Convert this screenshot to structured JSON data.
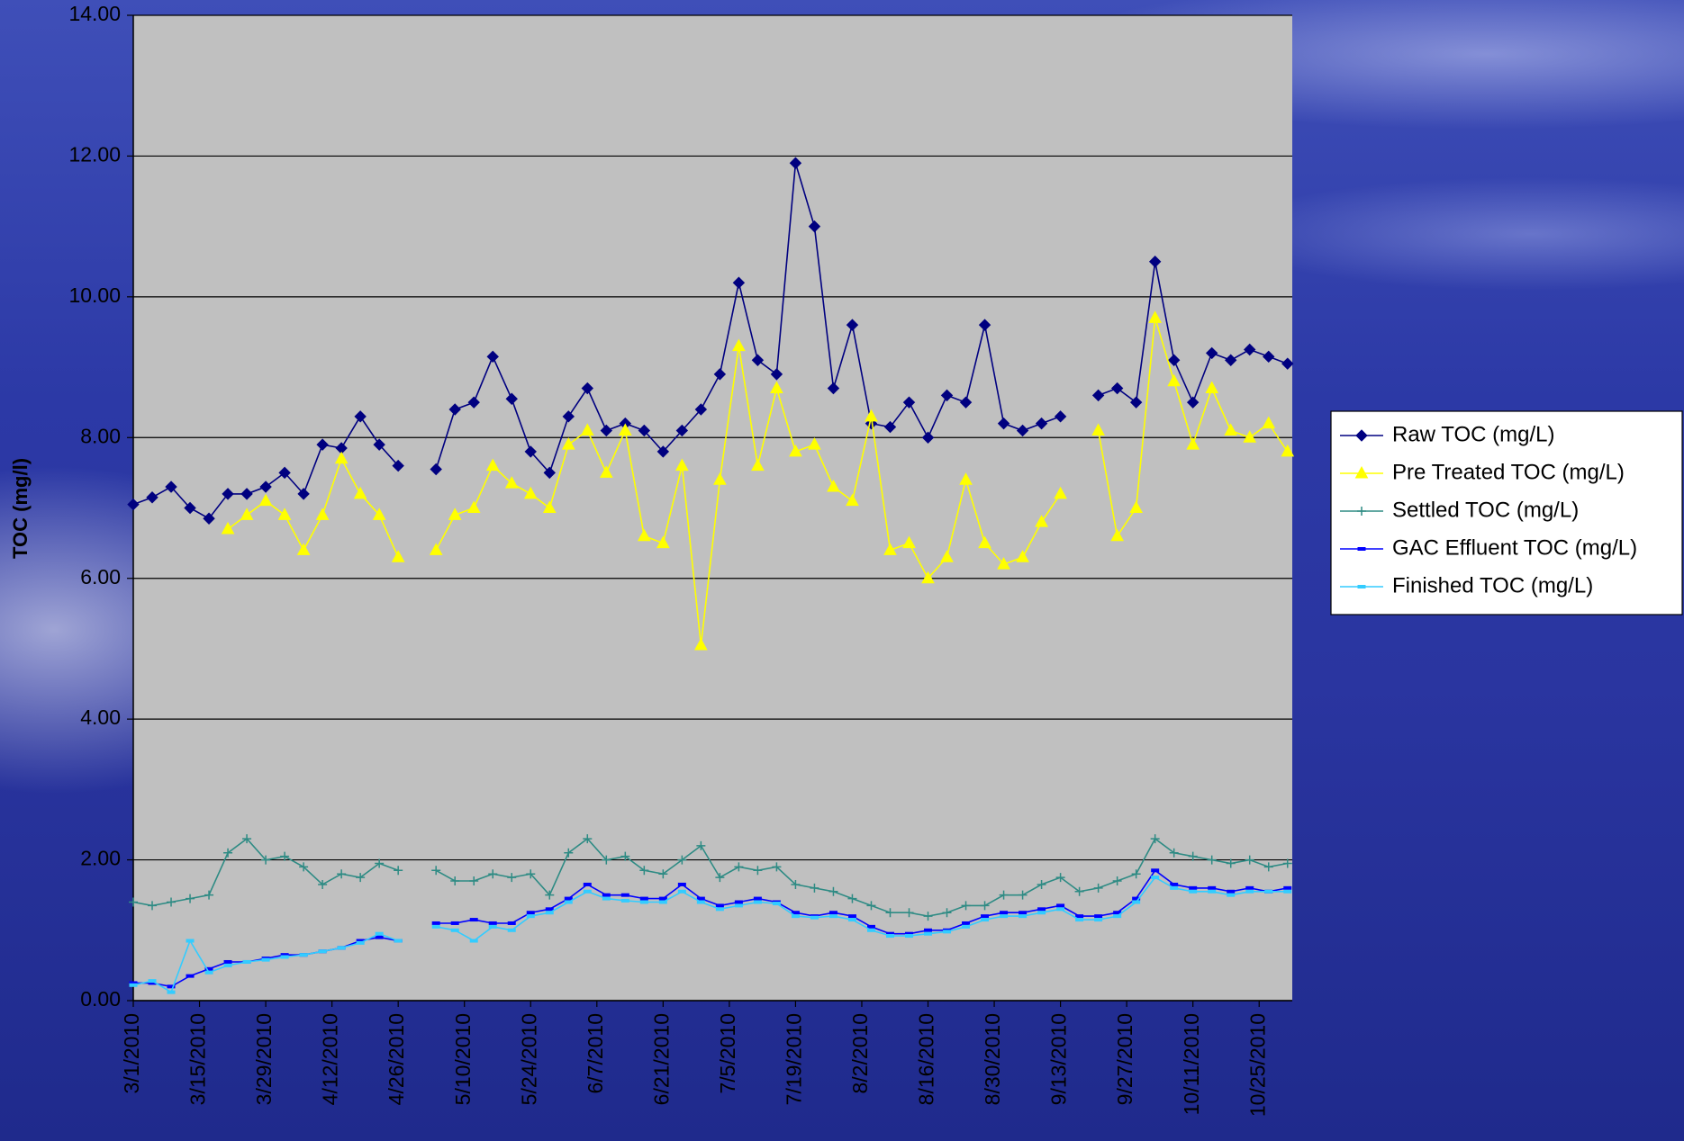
{
  "chart_data": {
    "type": "line",
    "y_label": "TOC (mg/l)",
    "x": [
      "3/1/2010",
      "3/5/2010",
      "3/9/2010",
      "3/13/2010",
      "3/17/2010",
      "3/21/2010",
      "3/25/2010",
      "3/29/2010",
      "4/2/2010",
      "4/6/2010",
      "4/10/2010",
      "4/14/2010",
      "4/18/2010",
      "4/22/2010",
      "4/26/2010",
      "4/30/2010",
      "5/4/2010",
      "5/8/2010",
      "5/12/2010",
      "5/16/2010",
      "5/20/2010",
      "5/24/2010",
      "5/28/2010",
      "6/1/2010",
      "6/5/2010",
      "6/9/2010",
      "6/13/2010",
      "6/17/2010",
      "6/21/2010",
      "6/25/2010",
      "6/29/2010",
      "7/3/2010",
      "7/7/2010",
      "7/11/2010",
      "7/15/2010",
      "7/19/2010",
      "7/23/2010",
      "7/27/2010",
      "7/31/2010",
      "8/4/2010",
      "8/8/2010",
      "8/12/2010",
      "8/16/2010",
      "8/20/2010",
      "8/24/2010",
      "8/28/2010",
      "9/1/2010",
      "9/5/2010",
      "9/9/2010",
      "9/13/2010",
      "9/17/2010",
      "9/21/2010",
      "9/25/2010",
      "9/29/2010",
      "10/3/2010",
      "10/7/2010",
      "10/11/2010",
      "10/15/2010",
      "10/19/2010",
      "10/23/2010",
      "10/27/2010",
      "10/31/2010"
    ],
    "series": [
      {
        "name": "Raw TOC (mg/L)",
        "color": "#000080",
        "marker": "diamond",
        "values": [
          7.05,
          7.15,
          7.3,
          7.0,
          6.85,
          7.2,
          7.2,
          7.3,
          7.5,
          7.2,
          7.9,
          7.85,
          8.3,
          7.9,
          7.6,
          null,
          7.55,
          8.4,
          8.5,
          9.15,
          8.55,
          7.8,
          7.5,
          8.3,
          8.7,
          8.1,
          8.2,
          8.1,
          7.8,
          8.1,
          8.4,
          8.9,
          10.2,
          9.1,
          8.9,
          11.9,
          11.0,
          8.7,
          9.6,
          8.2,
          8.15,
          8.5,
          8.0,
          8.6,
          8.5,
          9.6,
          8.2,
          8.1,
          8.2,
          8.3,
          null,
          8.6,
          8.7,
          8.5,
          10.5,
          9.1,
          8.5,
          9.2,
          9.1,
          9.25,
          9.15,
          9.05
        ]
      },
      {
        "name": "Pre Treated TOC (mg/L)",
        "color": "#ffff00",
        "marker": "triangle",
        "values": [
          null,
          null,
          null,
          null,
          null,
          6.7,
          6.9,
          7.1,
          6.9,
          6.4,
          6.9,
          7.7,
          7.2,
          6.9,
          6.3,
          null,
          6.4,
          6.9,
          7.0,
          7.6,
          7.35,
          7.2,
          7.0,
          7.9,
          8.1,
          7.5,
          8.1,
          6.6,
          6.5,
          7.6,
          5.05,
          7.4,
          9.3,
          7.6,
          8.7,
          7.8,
          7.9,
          7.3,
          7.1,
          8.3,
          6.4,
          6.5,
          6.0,
          6.3,
          7.4,
          6.5,
          6.2,
          6.3,
          6.8,
          7.2,
          null,
          8.1,
          6.6,
          7.0,
          9.7,
          8.8,
          7.9,
          8.7,
          8.1,
          8.0,
          8.2,
          7.8
        ]
      },
      {
        "name": "Settled TOC (mg/L)",
        "color": "#2e8b84",
        "marker": "plus",
        "values": [
          1.4,
          1.35,
          1.4,
          1.45,
          1.5,
          2.1,
          2.3,
          2.0,
          2.05,
          1.9,
          1.65,
          1.8,
          1.75,
          1.95,
          1.85,
          null,
          1.85,
          1.7,
          1.7,
          1.8,
          1.75,
          1.8,
          1.5,
          2.1,
          2.3,
          2.0,
          2.05,
          1.85,
          1.8,
          2.0,
          2.2,
          1.75,
          1.9,
          1.85,
          1.9,
          1.65,
          1.6,
          1.55,
          1.45,
          1.35,
          1.25,
          1.25,
          1.2,
          1.25,
          1.35,
          1.35,
          1.5,
          1.5,
          1.65,
          1.75,
          1.55,
          1.6,
          1.7,
          1.8,
          2.3,
          2.1,
          2.05,
          2.0,
          1.95,
          2.0,
          1.9,
          1.95
        ]
      },
      {
        "name": "GAC Effluent TOC (mg/L)",
        "color": "#0000ff",
        "marker": "dash",
        "values": [
          0.25,
          0.25,
          0.2,
          0.35,
          0.45,
          0.55,
          0.55,
          0.6,
          0.65,
          0.65,
          0.7,
          0.75,
          0.85,
          0.9,
          0.85,
          null,
          1.1,
          1.1,
          1.15,
          1.1,
          1.1,
          1.25,
          1.3,
          1.45,
          1.65,
          1.5,
          1.5,
          1.45,
          1.45,
          1.65,
          1.45,
          1.35,
          1.4,
          1.45,
          1.4,
          1.25,
          1.2,
          1.25,
          1.2,
          1.05,
          0.95,
          0.95,
          1.0,
          1.0,
          1.1,
          1.2,
          1.25,
          1.25,
          1.3,
          1.35,
          1.2,
          1.2,
          1.25,
          1.45,
          1.85,
          1.65,
          1.6,
          1.6,
          1.55,
          1.6,
          1.55,
          1.6
        ]
      },
      {
        "name": "Finished TOC (mg/L)",
        "color": "#33ccff",
        "marker": "dash",
        "values": [
          0.22,
          0.28,
          0.12,
          0.85,
          0.4,
          0.5,
          0.55,
          0.58,
          0.62,
          0.65,
          0.7,
          0.75,
          0.82,
          0.95,
          0.85,
          null,
          1.05,
          1.0,
          0.85,
          1.05,
          1.0,
          1.2,
          1.25,
          1.4,
          1.55,
          1.45,
          1.42,
          1.4,
          1.4,
          1.55,
          1.4,
          1.3,
          1.35,
          1.4,
          1.38,
          1.2,
          1.18,
          1.2,
          1.15,
          1.0,
          0.92,
          0.92,
          0.95,
          0.98,
          1.05,
          1.15,
          1.2,
          1.2,
          1.25,
          1.3,
          1.15,
          1.15,
          1.2,
          1.4,
          1.75,
          1.6,
          1.55,
          1.55,
          1.5,
          1.55,
          1.55,
          1.55
        ]
      }
    ],
    "xlim": [
      "3/1/2010",
      "11/1/2010"
    ],
    "xticks": [
      "3/1/2010",
      "3/15/2010",
      "3/29/2010",
      "4/12/2010",
      "4/26/2010",
      "5/10/2010",
      "5/24/2010",
      "6/7/2010",
      "6/21/2010",
      "7/5/2010",
      "7/19/2010",
      "8/2/2010",
      "8/16/2010",
      "8/30/2010",
      "9/13/2010",
      "9/27/2010",
      "10/11/2010",
      "10/25/2010"
    ],
    "ylim": [
      0,
      14
    ],
    "yticks": [
      {
        "value": 0,
        "label": "0.00"
      },
      {
        "value": 2,
        "label": "2.00"
      },
      {
        "value": 4,
        "label": "4.00"
      },
      {
        "value": 6,
        "label": "6.00"
      },
      {
        "value": 8,
        "label": "8.00"
      },
      {
        "value": 10,
        "label": "10.00"
      },
      {
        "value": 12,
        "label": "12.00"
      },
      {
        "value": 14,
        "label": "14.00"
      }
    ],
    "grid": true,
    "legend": "right"
  }
}
